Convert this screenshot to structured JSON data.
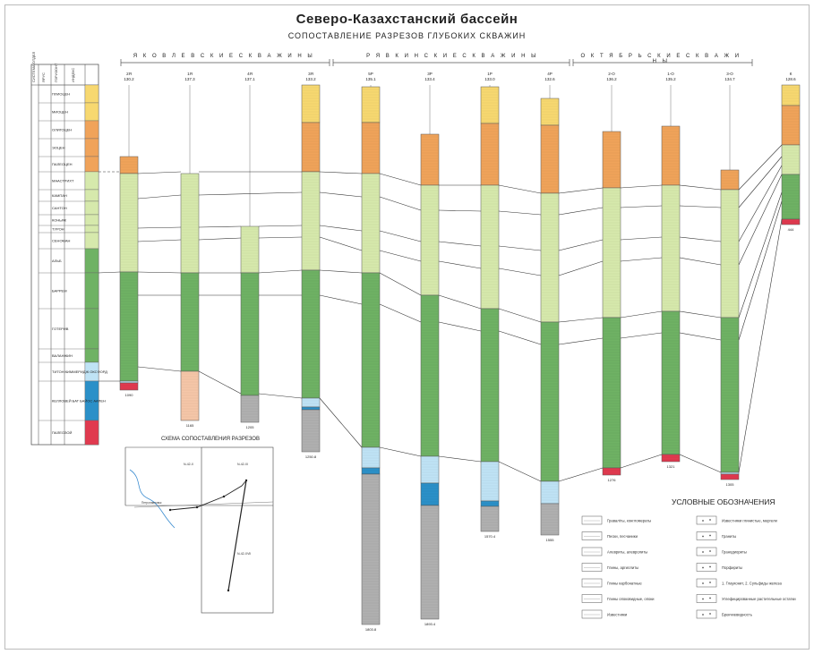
{
  "title": "Северо-Казахстанский бассейн",
  "subtitle": "СОПОСТАВЛЕНИЕ РАЗРЕЗОВ ГЛУБОКИХ СКВАЖИН",
  "groups": [
    {
      "label": "Я К О В Л Е В С К И Е   С К В А Ж И Н Ы"
    },
    {
      "label": "Р Я В К И Н С К И Е   С К В А Ж И Н Ы"
    },
    {
      "label": "О К Т Я Б Р Ь С К И Е   С К В А Ж И Н Ы"
    }
  ],
  "header_columns": [
    "СИСТЕМА ОТДЕЛ",
    "ЯРУС",
    "ГОРИЗОНТ",
    "ИНДЕКС"
  ],
  "stages": [
    {
      "label": "ПЛИОЦЕН"
    },
    {
      "label": "МИОЦЕН"
    },
    {
      "label": "ОЛИГОЦЕН"
    },
    {
      "label": "ЭОЦЕН"
    },
    {
      "label": "ПАЛЕОЦЕН"
    },
    {
      "label": "МААСТРИХТ"
    },
    {
      "label": "КАМПАН"
    },
    {
      "label": "САНТОН"
    },
    {
      "label": "КОНЬЯК"
    },
    {
      "label": "ТУРОН"
    },
    {
      "label": "СЕНОМАН"
    },
    {
      "label": "АЛЬБ"
    },
    {
      "label": "БАРРЕМ"
    },
    {
      "label": "ГОТЕРИВ"
    },
    {
      "label": "ВАЛАНЖИН"
    },
    {
      "label": "ТИТОН КИММЕРИДЖ ОКСФОРД"
    },
    {
      "label": "КЕЛЛОВЕЙ БАТ БАЙОС ААЛЕН"
    },
    {
      "label": "ПАЛЕОЗОЙ"
    }
  ],
  "wells": [
    {
      "name": "2Я",
      "elev": "130.2",
      "depth": "1090"
    },
    {
      "name": "1Я",
      "elev": "137.3",
      "depth": "1165"
    },
    {
      "name": "4Я",
      "elev": "137.1",
      "depth": "1205"
    },
    {
      "name": "3Я",
      "elev": "133.2",
      "depth": "1250.8"
    },
    {
      "name": "5Р",
      "elev": "135.1",
      "depth": "1803.8"
    },
    {
      "name": "3Р",
      "elev": "133.4",
      "depth": "1893.4"
    },
    {
      "name": "1Р",
      "elev": "133.0",
      "depth": "1570.4"
    },
    {
      "name": "4Р",
      "elev": "132.6",
      "depth": "1555"
    },
    {
      "name": "2-О",
      "elev": "136.2",
      "depth": "1276"
    },
    {
      "name": "1-О",
      "elev": "135.2",
      "depth": "1321"
    },
    {
      "name": "3-О",
      "elev": "134.7",
      "depth": "1305"
    },
    {
      "name": "К",
      "elev": "128.6",
      "depth": "444"
    }
  ],
  "map": {
    "title": "СХЕМА СОПОСТАВЛЕНИЯ РАЗРЕЗОВ",
    "sheet1": "N-42-X",
    "sheet2": "N-42-XI",
    "sheet3": "N-42-XVII",
    "town": "Петропавловск"
  },
  "legend": {
    "title": "УСЛОВНЫЕ ОБОЗНАЧЕНИЯ",
    "left": [
      "Граваліты, конгломераты",
      "Пески, песчаники",
      "Алевриты, алевролиты",
      "Глины, аргиллиты",
      "Глины карбонатные",
      "Глины опоковидные, опоки",
      "Известняки"
    ],
    "right": [
      "Известняки глинистые, мергели",
      "Граниты",
      "Гранодиориты",
      "Порфириты",
      "1. Глауконит, 2. Сульфиды железа",
      "Углефицированные растительные остатки",
      "Брекчиевидность"
    ]
  },
  "colors": {
    "neogene": "#f7d870",
    "paleogene": "#f0a35a",
    "cretaceous_upper": "#d6e9ac",
    "cretaceous_lower": "#6fb264",
    "jurassic_light": "#bfe3f5",
    "jurassic_dark": "#2b90c8",
    "paleozoic": "#e03a4f",
    "granite": "#f5c6a8",
    "basement_grey": "#b0b0b0"
  }
}
